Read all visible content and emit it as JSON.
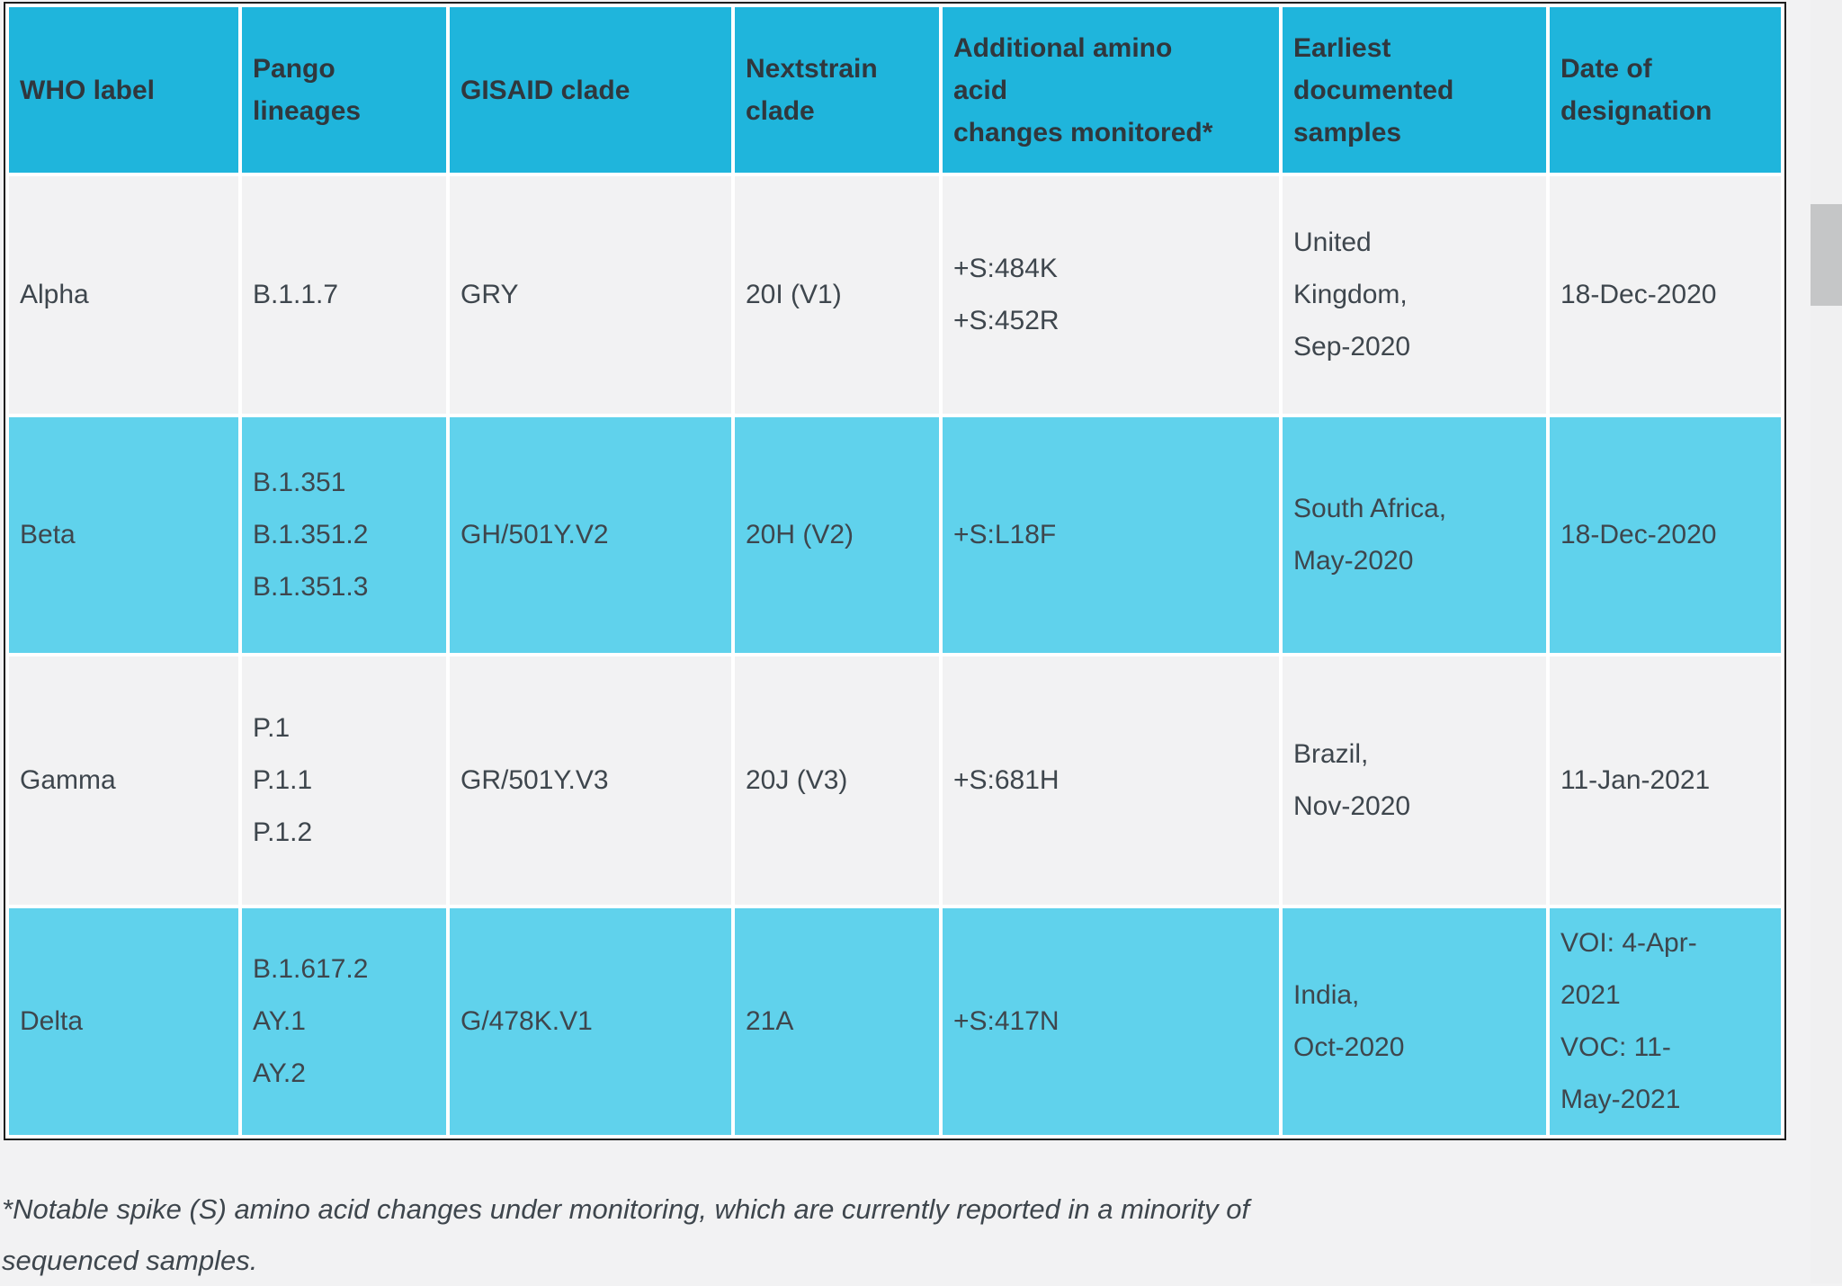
{
  "colors": {
    "page_bg": "#f2f2f3",
    "header_bg": "#1fb5dc",
    "row_cyan": "#60d2ec",
    "row_gray": "#f2f2f3",
    "border_color": "#1e1e1e",
    "header_text": "#30373d",
    "text_color": "#3e464d",
    "scrollbar_track": "#f0f0f1",
    "scrollbar_thumb": "#c5c6c7"
  },
  "table": {
    "columns": [
      {
        "key": "who_label",
        "label": "WHO label"
      },
      {
        "key": "pango_lineages",
        "label": "Pango\nlineages"
      },
      {
        "key": "gisaid_clade",
        "label": "GISAID clade"
      },
      {
        "key": "nextstrain_clade",
        "label": "Nextstrain\nclade"
      },
      {
        "key": "amino_acid_changes",
        "label": "Additional amino\nacid\nchanges monitored*"
      },
      {
        "key": "earliest_samples",
        "label": "Earliest\ndocumented\nsamples"
      },
      {
        "key": "date_of_designation",
        "label": "Date of\ndesignation"
      }
    ],
    "rows": [
      {
        "highlighted": false,
        "who_label": "Alpha",
        "pango_lineages": "B.1.1.7",
        "gisaid_clade": "GRY",
        "nextstrain_clade": "20I (V1)",
        "amino_acid_changes": "+S:484K\n+S:452R",
        "earliest_samples": "United\nKingdom,\nSep-2020",
        "date_of_designation": "18-Dec-2020"
      },
      {
        "highlighted": true,
        "who_label": "Beta",
        "pango_lineages": "B.1.351\nB.1.351.2\nB.1.351.3",
        "gisaid_clade": "GH/501Y.V2",
        "nextstrain_clade": "20H (V2)",
        "amino_acid_changes": "+S:L18F",
        "earliest_samples": "South Africa,\nMay-2020",
        "date_of_designation": "18-Dec-2020"
      },
      {
        "highlighted": false,
        "who_label": "Gamma",
        "pango_lineages": "P.1\nP.1.1\nP.1.2",
        "gisaid_clade": "GR/501Y.V3",
        "nextstrain_clade": "20J (V3)",
        "amino_acid_changes": "+S:681H",
        "earliest_samples": "Brazil,\nNov-2020",
        "date_of_designation": "11-Jan-2021"
      },
      {
        "highlighted": true,
        "who_label": "Delta",
        "pango_lineages": "B.1.617.2\nAY.1\nAY.2",
        "gisaid_clade": "G/478K.V1",
        "nextstrain_clade": "21A",
        "amino_acid_changes": "+S:417N",
        "earliest_samples": "India,\nOct-2020",
        "date_of_designation": "VOI: 4-Apr-\n2021\nVOC: 11-\nMay-2021"
      }
    ]
  },
  "footnote": "*Notable spike (S) amino acid changes under monitoring, which are currently reported in a minority of\nsequenced samples."
}
